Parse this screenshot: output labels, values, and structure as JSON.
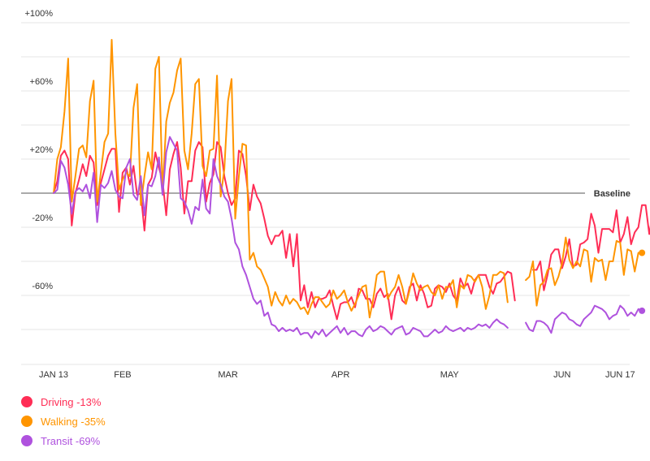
{
  "chart_data": {
    "type": "line",
    "baseline_label": "Baseline",
    "y_ticks": [
      "+100%",
      "+60%",
      "+20%",
      "-20%",
      "-60%"
    ],
    "y_tick_values": [
      100,
      60,
      20,
      -20,
      -60
    ],
    "ylim": [
      -100,
      100
    ],
    "x_ticks": [
      {
        "label": "JAN 13",
        "day": 0
      },
      {
        "label": "FEB",
        "day": 19
      },
      {
        "label": "MAR",
        "day": 48
      },
      {
        "label": "APR",
        "day": 79
      },
      {
        "label": "MAY",
        "day": 109
      },
      {
        "label": "JUN",
        "day": 140
      },
      {
        "label": "JUN 17",
        "day": 156
      }
    ],
    "gap": [
      120,
      124
    ],
    "grid": "horizontal",
    "legend_position": "bottom-left",
    "series": [
      {
        "name": "Driving",
        "legend": "Driving -13%",
        "color": "#ff2d55",
        "final": -13,
        "values": [
          0,
          7,
          22,
          25,
          20,
          -19,
          0,
          8,
          17,
          10,
          22,
          18,
          -7,
          6,
          14,
          22,
          26,
          26,
          -11,
          12,
          15,
          5,
          16,
          -1,
          0,
          -22,
          5,
          9,
          24,
          15,
          7,
          -13,
          14,
          23,
          30,
          15,
          -12,
          7,
          7,
          25,
          30,
          27,
          -5,
          6,
          11,
          30,
          27,
          10,
          0,
          -7,
          -3,
          25,
          23,
          10,
          -10,
          5,
          -2,
          -6,
          -15,
          -25,
          -30,
          -25,
          -25,
          -22,
          -38,
          -24,
          -43,
          -24,
          -63,
          -54,
          -67,
          -58,
          -67,
          -62,
          -62,
          -61,
          -57,
          -66,
          -74,
          -65,
          -64,
          -64,
          -61,
          -67,
          -56,
          -57,
          -62,
          -62,
          -67,
          -59,
          -56,
          -61,
          -59,
          -74,
          -60,
          -55,
          -63,
          -65,
          -55,
          -53,
          -63,
          -54,
          -59,
          -67,
          -66,
          -56,
          -54,
          -55,
          -58,
          -53,
          -60,
          -63,
          -50,
          -55,
          -53,
          -59,
          -51,
          -48,
          -48,
          -48,
          -55,
          -59,
          -53,
          -52,
          -49,
          -46,
          -47,
          -63,
          null,
          null,
          null,
          null,
          -45,
          -45,
          -40,
          -57,
          -48,
          -36,
          -33,
          -33,
          -44,
          -37,
          -27,
          -43,
          -42,
          -30,
          -29,
          -27,
          -12,
          -19,
          -35,
          -21,
          -21,
          -21,
          -23,
          -10,
          -29,
          -24,
          -14,
          -30,
          -23,
          -20,
          -7,
          -7,
          -24,
          -12,
          -13
        ]
      },
      {
        "name": "Walking",
        "legend": "Walking -35%",
        "color": "#ff9500",
        "final": -35,
        "values": [
          0,
          20,
          27,
          48,
          79,
          -5,
          10,
          26,
          28,
          21,
          54,
          66,
          -5,
          12,
          30,
          35,
          90,
          35,
          2,
          8,
          12,
          10,
          50,
          64,
          -7,
          10,
          24,
          14,
          73,
          80,
          0,
          42,
          53,
          59,
          72,
          79,
          25,
          14,
          35,
          64,
          67,
          16,
          10,
          25,
          26,
          69,
          -2,
          14,
          54,
          67,
          -15,
          10,
          29,
          28,
          -39,
          -35,
          -43,
          -45,
          -50,
          -55,
          -66,
          -58,
          -63,
          -66,
          -60,
          -65,
          -62,
          -64,
          -68,
          -67,
          -71,
          -65,
          -61,
          -61,
          -64,
          -67,
          -65,
          -57,
          -62,
          -60,
          -57,
          -64,
          -69,
          -65,
          -60,
          -55,
          -54,
          -73,
          -62,
          -48,
          -46,
          -46,
          -62,
          -58,
          -55,
          -48,
          -55,
          -65,
          -57,
          -47,
          -53,
          -57,
          -55,
          -54,
          -58,
          -60,
          -54,
          -62,
          -55,
          -55,
          -51,
          -67,
          -54,
          -56,
          -48,
          -49,
          -52,
          -48,
          -55,
          -68,
          -60,
          -48,
          -48,
          -46,
          -47,
          -64,
          null,
          null,
          null,
          null,
          -51,
          -49,
          -40,
          -66,
          -54,
          -52,
          -45,
          -44,
          -54,
          -49,
          -41,
          -26,
          -39,
          -44,
          -40,
          -43,
          -33,
          -34,
          -52,
          -38,
          -40,
          -39,
          -51,
          -40,
          -40,
          -28,
          -29,
          -48,
          -33,
          -34,
          -46,
          -35,
          -35
        ]
      },
      {
        "name": "Transit",
        "legend": "Transit -69%",
        "color": "#af52de",
        "final": -69,
        "values": [
          0,
          2,
          19,
          15,
          5,
          -12,
          1,
          3,
          1,
          5,
          -3,
          12,
          -17,
          5,
          3,
          6,
          13,
          2,
          -2,
          -3,
          15,
          20,
          -1,
          -4,
          10,
          -13,
          5,
          4,
          10,
          21,
          -1,
          24,
          33,
          29,
          25,
          -3,
          -5,
          -10,
          -18,
          -8,
          -10,
          8,
          -9,
          -12,
          20,
          10,
          5,
          -2,
          -5,
          -15,
          -29,
          -33,
          -43,
          -48,
          -55,
          -62,
          -65,
          -63,
          -72,
          -70,
          -77,
          -78,
          -81,
          -79,
          -81,
          -80,
          -81,
          -79,
          -83,
          -82,
          -82,
          -85,
          -81,
          -83,
          -80,
          -84,
          -82,
          -80,
          -78,
          -82,
          -79,
          -83,
          -81,
          -81,
          -83,
          -84,
          -80,
          -78,
          -81,
          -80,
          -78,
          -79,
          -81,
          -83,
          -80,
          -79,
          -78,
          -83,
          -82,
          -79,
          -80,
          -81,
          -84,
          -84,
          -82,
          -80,
          -82,
          -81,
          -78,
          -80,
          -81,
          -80,
          -79,
          -81,
          -79,
          -80,
          -79,
          -77,
          -78,
          -77,
          -79,
          -76,
          -74,
          -76,
          -77,
          -79,
          null,
          null,
          null,
          null,
          -76,
          -80,
          -81,
          -75,
          -75,
          -76,
          -78,
          -82,
          -74,
          -72,
          -70,
          -71,
          -74,
          -75,
          -77,
          -78,
          -74,
          -72,
          -70,
          -66,
          -67,
          -68,
          -70,
          -74,
          -72,
          -71,
          -66,
          -68,
          -72,
          -70,
          -72,
          -68,
          -69
        ]
      }
    ]
  }
}
